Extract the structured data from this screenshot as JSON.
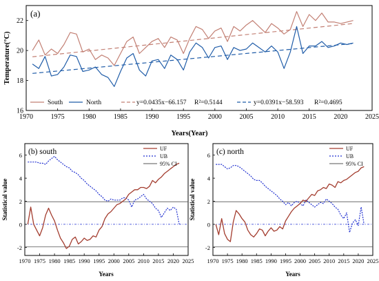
{
  "chart_data": [
    {
      "type": "line",
      "panel_label": "(a)",
      "xlabel": "Years(Year)",
      "ylabel": "Temperature(°C)",
      "xlim": [
        1970,
        2025
      ],
      "ylim": [
        16,
        23
      ],
      "xticks": [
        1970,
        1975,
        1980,
        1985,
        1990,
        1995,
        2000,
        2005,
        2010,
        2015,
        2020,
        2025
      ],
      "yticks": [
        16,
        18,
        20,
        22
      ],
      "legend_position": "bottom",
      "series": [
        {
          "name": "South",
          "color": "#c27f73",
          "x": [
            1971,
            1972,
            1973,
            1974,
            1975,
            1976,
            1977,
            1978,
            1979,
            1980,
            1981,
            1982,
            1983,
            1984,
            1985,
            1986,
            1987,
            1988,
            1989,
            1990,
            1991,
            1992,
            1993,
            1994,
            1995,
            1996,
            1997,
            1998,
            1999,
            2000,
            2001,
            2002,
            2003,
            2004,
            2005,
            2006,
            2007,
            2008,
            2009,
            2010,
            2011,
            2012,
            2013,
            2014,
            2015,
            2016,
            2017,
            2018,
            2019,
            2020,
            2021,
            2022
          ],
          "y": [
            20.0,
            20.7,
            19.7,
            20.1,
            19.8,
            20.4,
            21.2,
            21.1,
            19.9,
            20.1,
            19.4,
            19.7,
            19.5,
            19.0,
            19.8,
            20.6,
            20.9,
            19.8,
            20.2,
            20.6,
            20.8,
            20.2,
            20.9,
            20.7,
            19.8,
            20.8,
            21.6,
            21.4,
            20.8,
            21.3,
            21.5,
            20.6,
            21.6,
            21.3,
            21.7,
            22.0,
            21.6,
            21.2,
            21.8,
            21.5,
            21.1,
            21.4,
            22.6,
            21.6,
            22.4,
            22.0,
            22.5,
            21.9,
            21.9,
            21.8,
            21.9,
            22.0
          ]
        },
        {
          "name": "North",
          "color": "#1f5ca8",
          "x": [
            1971,
            1972,
            1973,
            1974,
            1975,
            1976,
            1977,
            1978,
            1979,
            1980,
            1981,
            1982,
            1983,
            1984,
            1985,
            1986,
            1987,
            1988,
            1989,
            1990,
            1991,
            1992,
            1993,
            1994,
            1995,
            1996,
            1997,
            1998,
            1999,
            2000,
            2001,
            2002,
            2003,
            2004,
            2005,
            2006,
            2007,
            2008,
            2009,
            2010,
            2011,
            2012,
            2013,
            2014,
            2015,
            2016,
            2017,
            2018,
            2019,
            2020,
            2021,
            2022
          ],
          "y": [
            19.1,
            18.8,
            19.6,
            18.3,
            18.4,
            18.9,
            19.7,
            19.6,
            18.6,
            18.7,
            18.9,
            18.4,
            18.2,
            17.6,
            18.6,
            19.5,
            19.8,
            18.7,
            18.3,
            19.3,
            19.4,
            18.8,
            19.7,
            19.4,
            18.7,
            19.9,
            20.5,
            20.2,
            19.5,
            20.2,
            20.3,
            19.4,
            20.2,
            20.0,
            20.1,
            20.5,
            20.2,
            19.9,
            20.3,
            19.9,
            18.8,
            19.9,
            21.6,
            19.8,
            20.3,
            20.3,
            20.6,
            20.2,
            20.3,
            20.5,
            20.4,
            20.5
          ]
        }
      ],
      "trend_lines": [
        {
          "label": "y=0.0435x−66.157",
          "r2": "R²=0.5144",
          "slope": 0.0435,
          "intercept": -66.157,
          "color": "#c27f73"
        },
        {
          "label": "y=0.0391x−58.593",
          "r2": "R²=0.4695",
          "slope": 0.0391,
          "intercept": -58.593,
          "color": "#1f5ca8"
        }
      ]
    },
    {
      "type": "line",
      "panel_label": "(b) south",
      "xlabel": "Years",
      "ylabel": "Statistical value",
      "xlim": [
        1970,
        2025
      ],
      "ylim": [
        -2.7,
        7
      ],
      "xticks": [
        1970,
        1975,
        1980,
        1985,
        1990,
        1995,
        2000,
        2005,
        2010,
        2015,
        2020,
        2025
      ],
      "yticks": [
        -2,
        0,
        2,
        4,
        6
      ],
      "legend_position": "top-right",
      "series": [
        {
          "name": "UF",
          "color": "#a33c2e",
          "x": [
            1971,
            1972,
            1973,
            1974,
            1975,
            1976,
            1977,
            1978,
            1979,
            1980,
            1981,
            1982,
            1983,
            1984,
            1985,
            1986,
            1987,
            1988,
            1989,
            1990,
            1991,
            1992,
            1993,
            1994,
            1995,
            1996,
            1997,
            1998,
            1999,
            2000,
            2001,
            2002,
            2003,
            2004,
            2005,
            2006,
            2007,
            2008,
            2009,
            2010,
            2011,
            2012,
            2013,
            2014,
            2015,
            2016,
            2017,
            2018,
            2019,
            2020,
            2021,
            2022
          ],
          "y": [
            0.0,
            1.5,
            0.0,
            -0.5,
            -1.0,
            -0.3,
            0.8,
            1.4,
            0.8,
            0.3,
            -0.5,
            -1.2,
            -1.6,
            -2.1,
            -1.9,
            -1.3,
            -1.1,
            -1.7,
            -1.5,
            -1.2,
            -1.4,
            -1.3,
            -1.0,
            -1.1,
            -0.5,
            -0.2,
            0.5,
            0.9,
            1.1,
            1.4,
            1.7,
            1.8,
            2.0,
            2.2,
            2.6,
            2.8,
            3.0,
            3.0,
            3.2,
            3.2,
            3.1,
            3.3,
            3.8,
            3.6,
            3.9,
            4.1,
            4.4,
            4.6,
            4.8,
            5.0,
            5.2,
            5.3
          ]
        },
        {
          "name": "UB",
          "color": "#1f2fd0",
          "x": [
            1971,
            1972,
            1973,
            1974,
            1975,
            1976,
            1977,
            1978,
            1979,
            1980,
            1981,
            1982,
            1983,
            1984,
            1985,
            1986,
            1987,
            1988,
            1989,
            1990,
            1991,
            1992,
            1993,
            1994,
            1995,
            1996,
            1997,
            1998,
            1999,
            2000,
            2001,
            2002,
            2003,
            2004,
            2005,
            2006,
            2007,
            2008,
            2009,
            2010,
            2011,
            2012,
            2013,
            2014,
            2015,
            2016,
            2017,
            2018,
            2019,
            2020,
            2021,
            2022
          ],
          "y": [
            5.4,
            5.4,
            5.4,
            5.4,
            5.3,
            5.3,
            5.2,
            5.5,
            5.7,
            5.9,
            5.6,
            5.4,
            5.2,
            5.0,
            4.9,
            4.6,
            4.5,
            4.3,
            4.0,
            3.8,
            3.5,
            3.3,
            3.1,
            2.9,
            2.6,
            2.4,
            2.1,
            2.0,
            2.2,
            2.1,
            2.1,
            2.1,
            2.3,
            2.3,
            2.1,
            1.5,
            2.1,
            2.2,
            2.4,
            2.6,
            2.2,
            2.0,
            1.8,
            1.4,
            1.2,
            0.6,
            1.0,
            1.4,
            1.2,
            1.5,
            1.3,
            0.0
          ]
        },
        {
          "name": "95% CI",
          "color": "#555555",
          "levels": [
            1.96,
            -1.96
          ]
        }
      ]
    },
    {
      "type": "line",
      "panel_label": "(c) north",
      "xlabel": "Years",
      "ylabel": "Statistical value",
      "xlim": [
        1970,
        2025
      ],
      "ylim": [
        -2.7,
        7
      ],
      "xticks": [
        1970,
        1975,
        1980,
        1985,
        1990,
        1995,
        2000,
        2005,
        2010,
        2015,
        2020,
        2025
      ],
      "yticks": [
        -2,
        0,
        2,
        4,
        6
      ],
      "legend_position": "top-right",
      "series": [
        {
          "name": "UF",
          "color": "#a33c2e",
          "x": [
            1971,
            1972,
            1973,
            1974,
            1975,
            1976,
            1977,
            1978,
            1979,
            1980,
            1981,
            1982,
            1983,
            1984,
            1985,
            1986,
            1987,
            1988,
            1989,
            1990,
            1991,
            1992,
            1993,
            1994,
            1995,
            1996,
            1997,
            1998,
            1999,
            2000,
            2001,
            2002,
            2003,
            2004,
            2005,
            2006,
            2007,
            2008,
            2009,
            2010,
            2011,
            2012,
            2013,
            2014,
            2015,
            2016,
            2017,
            2018,
            2019,
            2020,
            2021,
            2022
          ],
          "y": [
            0.0,
            -0.9,
            0.5,
            -0.8,
            -1.3,
            -1.5,
            0.2,
            1.2,
            0.9,
            0.5,
            0.2,
            -0.5,
            -0.9,
            -1.1,
            -0.8,
            -0.4,
            -0.5,
            -1.0,
            -0.6,
            -0.3,
            -0.6,
            -0.5,
            -0.2,
            -0.4,
            0.3,
            0.7,
            1.1,
            1.4,
            1.6,
            1.8,
            2.1,
            2.0,
            2.3,
            2.6,
            2.5,
            2.9,
            3.0,
            3.2,
            3.1,
            3.5,
            3.4,
            3.2,
            3.7,
            3.6,
            3.8,
            3.9,
            4.1,
            4.3,
            4.5,
            4.6,
            4.9,
            5.0
          ]
        },
        {
          "name": "UB",
          "color": "#1f2fd0",
          "x": [
            1971,
            1972,
            1973,
            1974,
            1975,
            1976,
            1977,
            1978,
            1979,
            1980,
            1981,
            1982,
            1983,
            1984,
            1985,
            1986,
            1987,
            1988,
            1989,
            1990,
            1991,
            1992,
            1993,
            1994,
            1995,
            1996,
            1997,
            1998,
            1999,
            2000,
            2001,
            2002,
            2003,
            2004,
            2005,
            2006,
            2007,
            2008,
            2009,
            2010,
            2011,
            2012,
            2013,
            2014,
            2015,
            2016,
            2017,
            2018,
            2019,
            2020,
            2021,
            2022
          ],
          "y": [
            5.2,
            5.2,
            5.2,
            5.0,
            4.8,
            4.9,
            5.1,
            5.1,
            5.0,
            4.8,
            4.6,
            4.4,
            4.2,
            3.9,
            3.8,
            3.8,
            3.6,
            3.3,
            3.1,
            2.9,
            2.7,
            2.5,
            2.2,
            2.0,
            1.7,
            1.9,
            1.6,
            1.9,
            2.0,
            1.8,
            1.6,
            2.1,
            1.9,
            1.7,
            1.5,
            1.7,
            1.9,
            1.8,
            2.2,
            2.0,
            1.8,
            1.5,
            1.3,
            0.8,
            0.5,
            1.0,
            -0.7,
            0.1,
            0.4,
            -0.1,
            1.5,
            0.0
          ]
        },
        {
          "name": "95% CI",
          "color": "#555555",
          "levels": [
            1.96,
            -1.96
          ]
        }
      ]
    }
  ]
}
